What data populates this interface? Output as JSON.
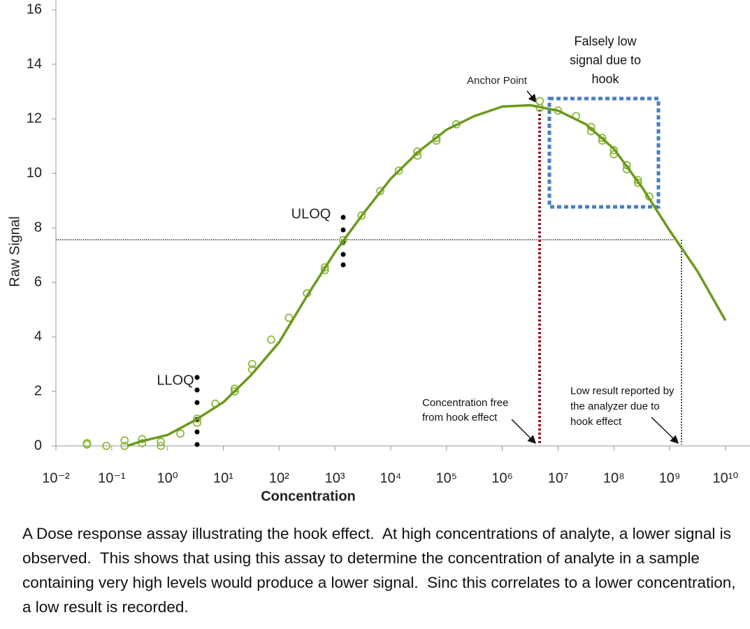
{
  "chart_data": {
    "type": "scatter",
    "x_label": "Concentration",
    "y_label": "Raw Signal",
    "xscale": "log",
    "xlim": [
      0.01,
      27500000000.0
    ],
    "ylim": [
      0,
      16
    ],
    "xticks": [
      {
        "value": 0.01,
        "label": "10⁻²"
      },
      {
        "value": 0.1,
        "label": "10⁻¹"
      },
      {
        "value": 1,
        "label": "10⁰"
      },
      {
        "value": 10,
        "label": "10¹"
      },
      {
        "value": 100,
        "label": "10²"
      },
      {
        "value": 1000,
        "label": "10³"
      },
      {
        "value": 10000,
        "label": "10⁴"
      },
      {
        "value": 100000,
        "label": "10⁵"
      },
      {
        "value": 1000000,
        "label": "10⁶"
      },
      {
        "value": 10000000,
        "label": "10⁷"
      },
      {
        "value": 100000000,
        "label": "10⁸"
      },
      {
        "value": 1000000000,
        "label": "10⁹"
      },
      {
        "value": 10000000000,
        "label": "10¹⁰"
      }
    ],
    "yticks": [
      0,
      2,
      4,
      6,
      8,
      10,
      12,
      14,
      16
    ],
    "series": [
      {
        "type": "scatter",
        "color": "#8fb83e",
        "x": [
          0.036,
          0.036,
          0.08,
          0.17,
          0.17,
          0.35,
          0.35,
          0.76,
          0.76,
          1.7,
          3.4,
          3.4,
          7.2,
          16,
          16,
          33,
          33,
          72,
          150,
          316,
          660,
          660,
          1400,
          3000,
          6500,
          14000,
          30000,
          30000,
          66000,
          66000,
          150000,
          4700000,
          4700000,
          10000000,
          21000000,
          39000000,
          39000000,
          62000000,
          62000000,
          100000000,
          100000000,
          170000000,
          170000000,
          270000000,
          270000000,
          430000000
        ],
        "values": [
          0.1,
          0.05,
          0.0,
          0.2,
          0.0,
          0.25,
          0.1,
          0.15,
          0.0,
          0.45,
          1.0,
          0.85,
          1.55,
          2.1,
          2.0,
          3.0,
          2.8,
          3.9,
          4.7,
          5.6,
          6.55,
          6.45,
          7.55,
          8.45,
          9.35,
          10.1,
          10.8,
          10.65,
          11.3,
          11.2,
          11.8,
          12.65,
          12.4,
          12.3,
          12.1,
          11.7,
          11.55,
          11.3,
          11.2,
          10.85,
          10.7,
          10.3,
          10.15,
          9.75,
          9.65,
          9.15
        ]
      },
      {
        "type": "line",
        "color": "#6a9a1c",
        "x": [
          0.19,
          0.316,
          1,
          3.16,
          10,
          31.6,
          100,
          316,
          1000,
          3160,
          10000,
          31600,
          100000,
          316000,
          1000000,
          3160000,
          10000000,
          31600000,
          100000000,
          316000000,
          1000000000,
          3160000000,
          10000000000
        ],
        "values": [
          0,
          0.15,
          0.4,
          0.95,
          1.6,
          2.6,
          3.8,
          5.5,
          7.1,
          8.5,
          9.8,
          10.8,
          11.6,
          12.1,
          12.45,
          12.5,
          12.3,
          11.8,
          10.9,
          9.5,
          7.9,
          6.4,
          4.6
        ]
      }
    ],
    "annotations": [
      "LLOQ",
      "ULOQ",
      "Anchor Point",
      "Falsely low signal due to hook",
      "Concentration free from hook effect",
      "Low result reported by the analyzer due to hook effect"
    ],
    "caption": "A Dose response assay illustrating the hook effect.  At high concentrations of analyte, a lower signal is observed.  This shows that using this assay to determine the concentration of analyte in a sample containing very high levels would produce a lower signal.  Sinc this correlates to a lower concentration, a low result is recorded."
  }
}
